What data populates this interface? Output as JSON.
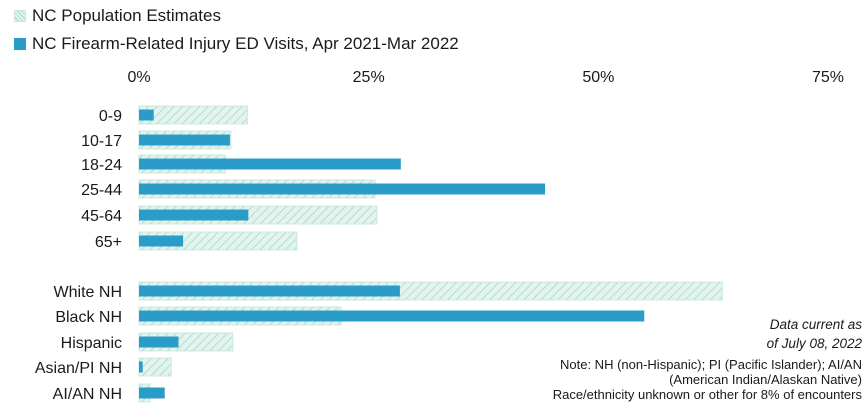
{
  "chart_data": {
    "type": "bar",
    "orientation": "horizontal",
    "title": "",
    "xlabel": "",
    "ylabel": "",
    "xlim": [
      0,
      75
    ],
    "x_ticks": [
      "0%",
      "25%",
      "50%",
      "75%"
    ],
    "x_tick_values": [
      0,
      25,
      50,
      75
    ],
    "legend_placement": "top-left",
    "grid": false,
    "categories": [
      "0-9",
      "10-17",
      "18-24",
      "25-44",
      "45-64",
      "65+",
      "White NH",
      "Black NH",
      "Hispanic",
      "Asian/PI NH",
      "AI/AN NH"
    ],
    "groups": [
      {
        "categories": [
          "0-9",
          "10-17",
          "18-24",
          "25-44",
          "45-64",
          "65+"
        ]
      },
      {
        "categories": [
          "White NH",
          "Black NH",
          "Hispanic",
          "Asian/PI NH",
          "AI/AN NH"
        ]
      }
    ],
    "series": [
      {
        "name": "NC Population Estimates",
        "color": "#dff2ec",
        "pattern": "hatched",
        "values": [
          11.8,
          10.0,
          9.4,
          25.7,
          25.9,
          17.2,
          63.5,
          22.0,
          10.2,
          3.5,
          1.2
        ]
      },
      {
        "name": "NC Firearm-Related Injury ED Visits, Apr 2021-Mar 2022",
        "color": "#2b9cc7",
        "pattern": "solid",
        "values": [
          1.6,
          9.9,
          28.5,
          44.2,
          11.9,
          4.8,
          28.4,
          55.0,
          4.3,
          0.4,
          2.8
        ]
      }
    ]
  },
  "notes": {
    "data_current_line1": "Data current as",
    "data_current_line2": "of July 08, 2022",
    "note_line1": "Note: NH (non-Hispanic); PI (Pacific Islander); AI/AN",
    "note_line2": "(American Indian/Alaskan Native)",
    "note_line3": "Race/ethnicity unknown or other for 8% of encounters"
  },
  "colors": {
    "hatch_stroke": "#a9d6c8",
    "hatch_border": "#c9e8de",
    "text": "#1a1a1a"
  }
}
